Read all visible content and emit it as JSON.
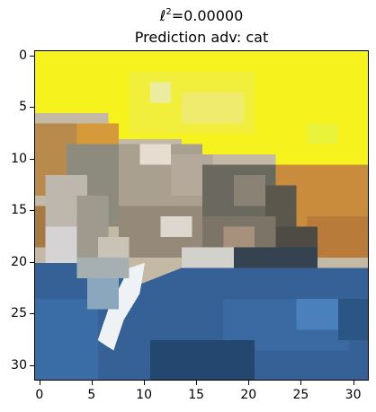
{
  "title": {
    "metric_symbol": "ℓ",
    "metric_exponent": "2",
    "metric_value": "=0.00000",
    "prediction": "Prediction adv: cat"
  },
  "axes": {
    "x_ticks": [
      "0",
      "5",
      "10",
      "15",
      "20",
      "25",
      "30"
    ],
    "y_ticks": [
      "0",
      "5",
      "10",
      "15",
      "20",
      "25",
      "30"
    ],
    "x_range": [
      -0.5,
      31.5
    ],
    "y_range": [
      -0.5,
      31.5
    ],
    "grid": false
  },
  "image": {
    "description_colors": {
      "sky": "#f6f21e",
      "fur_light": "#c9c3b6",
      "fur_dark": "#5c574c",
      "orange": "#c98b3c",
      "blanket": "#356196"
    }
  }
}
